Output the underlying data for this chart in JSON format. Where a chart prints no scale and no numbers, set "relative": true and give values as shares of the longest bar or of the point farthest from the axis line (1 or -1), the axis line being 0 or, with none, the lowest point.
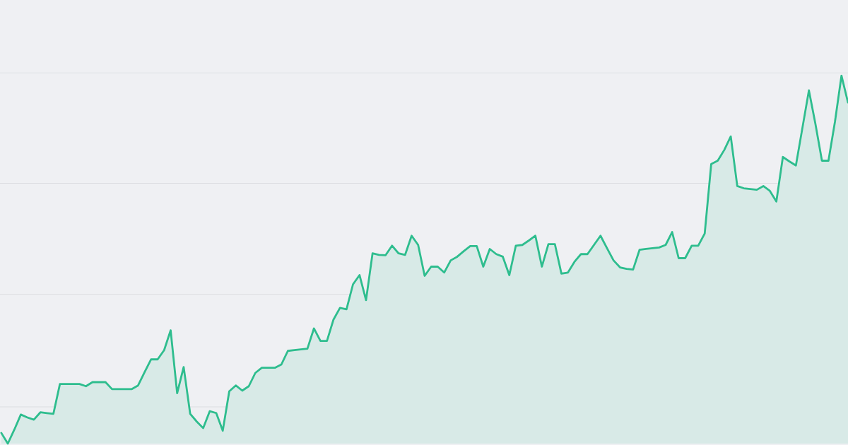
{
  "chart_data": {
    "type": "area",
    "relative": true,
    "grid": "y",
    "color": "#2ebd8e",
    "categories": [
      null,
      null,
      null,
      null,
      null,
      null,
      null,
      null,
      null,
      null,
      null,
      null,
      null,
      null,
      null,
      null,
      null,
      null,
      null,
      null,
      null,
      null,
      null,
      null,
      null,
      null,
      null,
      null,
      null,
      null,
      null,
      null,
      null,
      null,
      null,
      null,
      null,
      null,
      null,
      null,
      null,
      null,
      null,
      null,
      null,
      null,
      null,
      null,
      null,
      null,
      null,
      null,
      null,
      null,
      null,
      null,
      null,
      null,
      null,
      null,
      null,
      null,
      null,
      null,
      null,
      null,
      null,
      null,
      null,
      null,
      null,
      null,
      null,
      null,
      null,
      null,
      null,
      null,
      null,
      null,
      null,
      null,
      null,
      null,
      null,
      null,
      null,
      null,
      null,
      null,
      null,
      null,
      null,
      null,
      null,
      null,
      null,
      null,
      null,
      null,
      null,
      null,
      null,
      null,
      null,
      null,
      null,
      null,
      null,
      null,
      null,
      null,
      null,
      null,
      null,
      null,
      null,
      null,
      null,
      null,
      null,
      null,
      null,
      null,
      null,
      null,
      null,
      null,
      null,
      null,
      null
    ],
    "values": [
      0.029,
      0,
      0.038,
      0.079,
      0.071,
      0.065,
      0.085,
      0.083,
      0.081,
      0.162,
      0.162,
      0.162,
      0.162,
      0.156,
      0.167,
      0.167,
      0.167,
      0.148,
      0.148,
      0.148,
      0.148,
      0.158,
      0.194,
      0.229,
      0.229,
      0.254,
      0.308,
      0.137,
      0.208,
      0.081,
      0.06,
      0.042,
      0.088,
      0.083,
      0.035,
      0.142,
      0.158,
      0.144,
      0.156,
      0.192,
      0.206,
      0.206,
      0.206,
      0.215,
      0.252,
      0.254,
      0.256,
      0.258,
      0.313,
      0.279,
      0.279,
      0.337,
      0.369,
      0.365,
      0.433,
      0.458,
      0.39,
      0.517,
      0.513,
      0.512,
      0.538,
      0.517,
      0.513,
      0.565,
      0.54,
      0.456,
      0.481,
      0.481,
      0.465,
      0.498,
      0.508,
      0.523,
      0.537,
      0.537,
      0.481,
      0.529,
      0.515,
      0.508,
      0.458,
      0.538,
      0.54,
      0.552,
      0.565,
      0.481,
      0.542,
      0.542,
      0.462,
      0.465,
      0.494,
      0.515,
      0.515,
      0.54,
      0.565,
      0.531,
      0.498,
      0.479,
      0.475,
      0.473,
      0.527,
      0.529,
      0.531,
      0.533,
      0.54,
      0.575,
      0.504,
      0.504,
      0.538,
      0.538,
      0.571,
      0.76,
      0.769,
      0.798,
      0.835,
      0.7,
      0.694,
      0.692,
      0.69,
      0.7,
      0.687,
      0.658,
      0.779,
      0.767,
      0.756,
      0.858,
      0.96,
      0.869,
      0.769,
      0.769,
      0.875,
      1,
      0.927
    ]
  }
}
